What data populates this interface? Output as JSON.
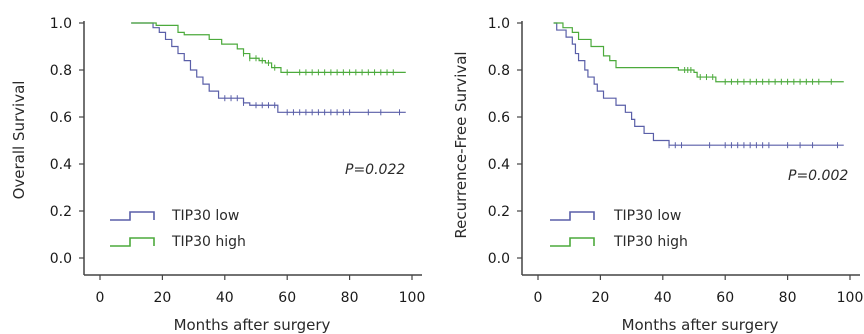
{
  "chart_data": [
    {
      "type": "line",
      "title": "",
      "xlabel": "Months after surgery",
      "ylabel": "Overall Survival",
      "xlim": [
        0,
        100
      ],
      "ylim": [
        0,
        1.0
      ],
      "xticks": [
        "0",
        "20",
        "40",
        "60",
        "80",
        "100"
      ],
      "yticks": [
        "0.0",
        "0.2",
        "0.4",
        "0.6",
        "0.8",
        "1.0"
      ],
      "annotation": "P=0.022",
      "grid": false,
      "legend_position": "bottom-left",
      "series": [
        {
          "name": "TIP30 low",
          "color": "#5a5fa8",
          "step": [
            [
              10,
              1.0
            ],
            [
              17,
              0.98
            ],
            [
              19,
              0.96
            ],
            [
              21,
              0.93
            ],
            [
              23,
              0.9
            ],
            [
              25,
              0.87
            ],
            [
              27,
              0.84
            ],
            [
              29,
              0.8
            ],
            [
              31,
              0.77
            ],
            [
              33,
              0.74
            ],
            [
              35,
              0.71
            ],
            [
              38,
              0.68
            ],
            [
              46,
              0.66
            ],
            [
              48,
              0.65
            ],
            [
              57,
              0.62
            ],
            [
              98,
              0.62
            ]
          ],
          "censored": [
            40,
            42,
            44,
            46,
            50,
            52,
            54,
            56,
            60,
            62,
            64,
            66,
            68,
            70,
            72,
            74,
            76,
            78,
            80,
            86,
            90,
            96
          ]
        },
        {
          "name": "TIP30 high",
          "color": "#4caa3c",
          "step": [
            [
              10,
              1.0
            ],
            [
              18,
              0.99
            ],
            [
              25,
              0.96
            ],
            [
              27,
              0.95
            ],
            [
              35,
              0.93
            ],
            [
              39,
              0.91
            ],
            [
              44,
              0.89
            ],
            [
              46,
              0.87
            ],
            [
              48,
              0.85
            ],
            [
              51,
              0.84
            ],
            [
              53,
              0.83
            ],
            [
              55,
              0.81
            ],
            [
              58,
              0.79
            ],
            [
              98,
              0.79
            ]
          ],
          "censored": [
            46,
            48,
            50,
            52,
            54,
            56,
            60,
            64,
            66,
            68,
            70,
            72,
            74,
            76,
            78,
            80,
            82,
            84,
            86,
            88,
            90,
            92,
            94
          ]
        }
      ]
    },
    {
      "type": "line",
      "title": "",
      "xlabel": "Months after surgery",
      "ylabel": "Recurrence-Free Survival",
      "xlim": [
        0,
        100
      ],
      "ylim": [
        0,
        1.0
      ],
      "xticks": [
        "0",
        "20",
        "40",
        "60",
        "80",
        "100"
      ],
      "yticks": [
        "0.0",
        "0.2",
        "0.4",
        "0.6",
        "0.8",
        "1.0"
      ],
      "annotation": "P=0.002",
      "grid": false,
      "legend_position": "bottom-left",
      "series": [
        {
          "name": "TIP30 low",
          "color": "#5a5fa8",
          "step": [
            [
              5,
              1.0
            ],
            [
              6,
              0.97
            ],
            [
              9,
              0.94
            ],
            [
              11,
              0.91
            ],
            [
              12,
              0.87
            ],
            [
              13,
              0.84
            ],
            [
              15,
              0.8
            ],
            [
              16,
              0.77
            ],
            [
              18,
              0.74
            ],
            [
              19,
              0.71
            ],
            [
              21,
              0.68
            ],
            [
              25,
              0.65
            ],
            [
              28,
              0.62
            ],
            [
              30,
              0.59
            ],
            [
              31,
              0.56
            ],
            [
              34,
              0.53
            ],
            [
              37,
              0.5
            ],
            [
              42,
              0.48
            ],
            [
              98,
              0.48
            ]
          ],
          "censored": [
            42,
            44,
            46,
            55,
            60,
            62,
            64,
            66,
            68,
            70,
            72,
            74,
            80,
            84,
            88,
            96
          ]
        },
        {
          "name": "TIP30 high",
          "color": "#4caa3c",
          "step": [
            [
              5,
              1.0
            ],
            [
              8,
              0.98
            ],
            [
              11,
              0.96
            ],
            [
              13,
              0.93
            ],
            [
              17,
              0.9
            ],
            [
              21,
              0.86
            ],
            [
              23,
              0.84
            ],
            [
              25,
              0.81
            ],
            [
              45,
              0.8
            ],
            [
              50,
              0.79
            ],
            [
              51,
              0.77
            ],
            [
              57,
              0.75
            ],
            [
              98,
              0.75
            ]
          ],
          "censored": [
            47,
            48,
            49,
            52,
            54,
            56,
            60,
            62,
            64,
            66,
            68,
            70,
            72,
            74,
            76,
            78,
            80,
            82,
            84,
            86,
            88,
            90,
            94
          ]
        }
      ]
    }
  ]
}
